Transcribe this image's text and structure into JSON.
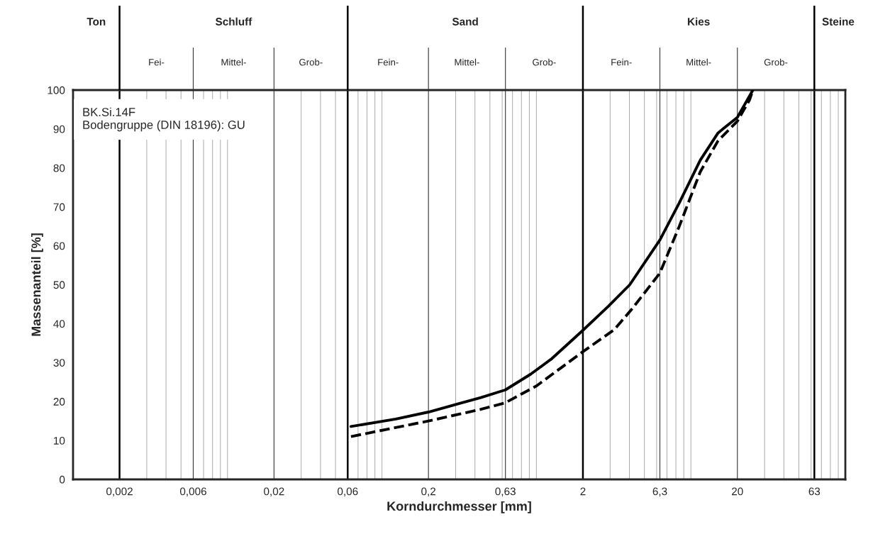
{
  "chart_data": {
    "type": "line",
    "xlabel": "Korndurchmesser [mm]",
    "ylabel": "Massenanteil [%]",
    "log": "x",
    "grid": "x",
    "xlim": [
      0.001,
      100
    ],
    "ylim": [
      0,
      100
    ],
    "xticks": [
      {
        "value": 0.002,
        "label": "0,002"
      },
      {
        "value": 0.006,
        "label": "0,006"
      },
      {
        "value": 0.02,
        "label": "0,02"
      },
      {
        "value": 0.06,
        "label": "0,06"
      },
      {
        "value": 0.2,
        "label": "0,2"
      },
      {
        "value": 0.63,
        "label": "0,63"
      },
      {
        "value": 2,
        "label": "2"
      },
      {
        "value": 6.3,
        "label": "6,3"
      },
      {
        "value": 20,
        "label": "20"
      },
      {
        "value": 63,
        "label": "63"
      }
    ],
    "yticks": [
      0,
      10,
      20,
      30,
      40,
      50,
      60,
      70,
      80,
      90,
      100
    ],
    "ref_lines": [
      {
        "axis": "x",
        "value": 0.002,
        "color": "#000000"
      },
      {
        "axis": "x",
        "value": 0.06,
        "color": "#000000"
      },
      {
        "axis": "x",
        "value": 2,
        "color": "#000000"
      },
      {
        "axis": "x",
        "value": 63,
        "color": "#000000"
      },
      {
        "axis": "x",
        "value": 0.006,
        "color": "#333333"
      },
      {
        "axis": "x",
        "value": 0.02,
        "color": "#333333"
      },
      {
        "axis": "x",
        "value": 0.2,
        "color": "#333333"
      },
      {
        "axis": "x",
        "value": 0.63,
        "color": "#333333"
      },
      {
        "axis": "x",
        "value": 6.3,
        "color": "#333333"
      },
      {
        "axis": "x",
        "value": 20,
        "color": "#333333"
      }
    ],
    "annotations": [
      "Ton",
      "Schluff",
      "Sand",
      "Kies",
      "Steine",
      "Fei-",
      "Mittel-",
      "Grob-",
      "Fein-",
      "Mittel-",
      "Grob-",
      "Fein-",
      "Mittel-",
      "Grob-",
      "BK.Si.14F\nBodengruppe (DIN 18196): GU"
    ],
    "series": [
      {
        "color": "#000000",
        "line_style": "solid",
        "x": [
          0.063,
          0.123,
          0.2,
          0.318,
          0.437,
          0.63,
          0.916,
          1.257,
          2,
          2.93,
          4.02,
          6.3,
          8.41,
          11.5,
          15.0,
          20,
          25.2
        ],
        "values": [
          13.6,
          15.5,
          17.3,
          19.5,
          21,
          23,
          27,
          31,
          38.3,
          44.5,
          50,
          61.5,
          71,
          82,
          89,
          93,
          100
        ]
      },
      {
        "color": "#000000",
        "line_style": "dashed",
        "x": [
          0.063,
          0.2,
          0.437,
          0.63,
          1.0,
          2,
          3.2,
          4.2,
          6.3,
          8.41,
          11.5,
          15.0,
          20,
          24,
          25.2
        ],
        "values": [
          11,
          15,
          18,
          19.7,
          24,
          32.8,
          38.5,
          44,
          53,
          65,
          79,
          87,
          92,
          97.5,
          100
        ]
      }
    ]
  }
}
